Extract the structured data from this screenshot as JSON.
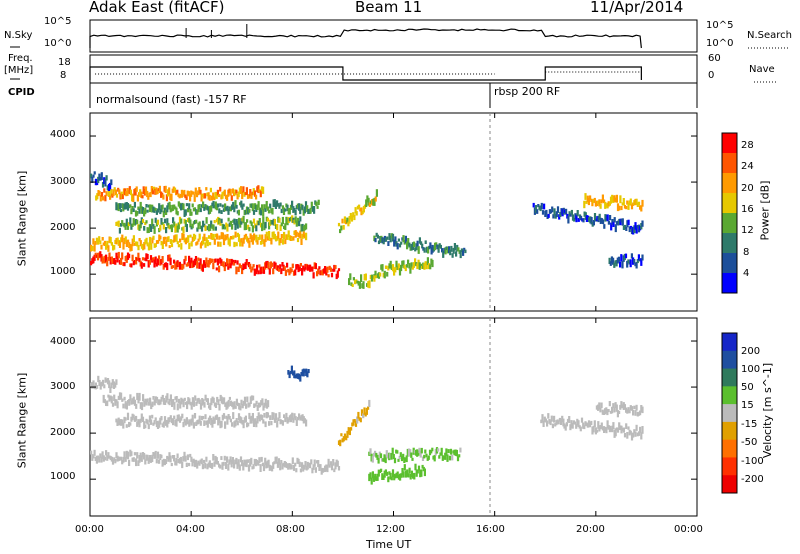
{
  "header": {
    "station": "Adak East (fitACF)",
    "beam": "Beam 11",
    "date": "11/Apr/2014"
  },
  "strip": {
    "nsky_label": "N.Sky",
    "nsky_ticks": [
      "10^5",
      "10^0"
    ],
    "nsearch_label": "N.Search",
    "freq_label_line1": "Freq.",
    "freq_label_line2": "[MHz]",
    "freq_ticks": [
      "18",
      "8"
    ],
    "nave_ticks": [
      "60",
      "0"
    ],
    "nave_label": "Nave",
    "cpid_label": "CPID",
    "cpid_segments": [
      {
        "name": "normalsound (fast) -157 RF",
        "start_hour": 0.0,
        "end_hour": 16.0
      },
      {
        "name": "rbsp 200 RF",
        "start_hour": 16.0,
        "end_hour": 21.8
      }
    ]
  },
  "axes": {
    "xlabel": "Time UT",
    "xticks": [
      "00:00",
      "04:00",
      "08:00",
      "12:00",
      "16:00",
      "20:00",
      "00:00"
    ],
    "ylabel": "Slant Range [km]",
    "yticks": [
      "4000",
      "3000",
      "2000",
      "1000"
    ]
  },
  "power_colorbar": {
    "label": "Power [dB]",
    "ticks": [
      "28",
      "24",
      "20",
      "16",
      "12",
      "8",
      "4"
    ],
    "colors": [
      "#ff0000",
      "#ff5500",
      "#ff9a00",
      "#e6c800",
      "#5aa832",
      "#2e7a6a",
      "#1c4f9a",
      "#0000ff"
    ]
  },
  "velocity_colorbar": {
    "label": "Velocity [m s^-1]",
    "ticks": [
      "200",
      "100",
      "50",
      "15",
      "-15",
      "-50",
      "-100",
      "-200"
    ],
    "colors": [
      "#1626c8",
      "#1f4fa0",
      "#2f7a5c",
      "#5bbf2e",
      "#bbbbbb",
      "#e0a000",
      "#ff7000",
      "#ff3000",
      "#ee0000"
    ]
  },
  "chart_data": [
    {
      "type": "heatmap",
      "title": "",
      "xlabel": "Time UT",
      "ylabel": "Slant Range [km]",
      "xlim": [
        0,
        24
      ],
      "ylim": [
        200,
        4500
      ],
      "colorbar_label": "Power [dB]",
      "colorbar_range": [
        0,
        32
      ],
      "bands": [
        {
          "t0": 0.0,
          "t1": 9.8,
          "r0": 1350,
          "r1": 1050,
          "v": 28
        },
        {
          "t0": 0.0,
          "t1": 8.5,
          "r0": 1650,
          "r1": 1800,
          "v": 20
        },
        {
          "t0": 1.0,
          "t1": 8.5,
          "r0": 2050,
          "r1": 2100,
          "v": 14
        },
        {
          "t0": 1.0,
          "t1": 9.0,
          "r0": 2400,
          "r1": 2450,
          "v": 12
        },
        {
          "t0": 0.2,
          "t1": 6.8,
          "r0": 2750,
          "r1": 2750,
          "v": 22
        },
        {
          "t0": 0.0,
          "t1": 0.8,
          "r0": 3150,
          "r1": 2950,
          "v": 6
        },
        {
          "t0": 9.8,
          "t1": 11.3,
          "r0": 2000,
          "r1": 2700,
          "v": 18
        },
        {
          "t0": 11.2,
          "t1": 14.8,
          "r0": 1800,
          "r1": 1450,
          "v": 10
        },
        {
          "t0": 11.2,
          "t1": 13.5,
          "r0": 1050,
          "r1": 1250,
          "v": 16
        },
        {
          "t0": 10.2,
          "t1": 11.2,
          "r0": 850,
          "r1": 850,
          "v": 16
        },
        {
          "t0": 17.5,
          "t1": 21.8,
          "r0": 2400,
          "r1": 2000,
          "v": 6
        },
        {
          "t0": 19.5,
          "t1": 21.8,
          "r0": 2600,
          "r1": 2500,
          "v": 20
        },
        {
          "t0": 20.5,
          "t1": 21.8,
          "r0": 1300,
          "r1": 1300,
          "v": 6
        }
      ]
    },
    {
      "type": "heatmap",
      "title": "",
      "xlabel": "Time UT",
      "ylabel": "Slant Range [km]",
      "xlim": [
        0,
        24
      ],
      "ylim": [
        200,
        4500
      ],
      "colorbar_label": "Velocity [m s^-1]",
      "colorbar_range": [
        -250,
        250
      ],
      "bands": [
        {
          "t0": 0.0,
          "t1": 9.8,
          "r0": 1500,
          "r1": 1250,
          "v": 0
        },
        {
          "t0": 0.5,
          "t1": 7.0,
          "r0": 2700,
          "r1": 2650,
          "v": 0
        },
        {
          "t0": 1.0,
          "t1": 8.5,
          "r0": 2250,
          "r1": 2300,
          "v": 0
        },
        {
          "t0": 0.0,
          "t1": 1.0,
          "r0": 3100,
          "r1": 3000,
          "v": 0
        },
        {
          "t0": 9.8,
          "t1": 11.0,
          "r0": 1800,
          "r1": 2600,
          "v": -40
        },
        {
          "t0": 11.0,
          "t1": 14.6,
          "r0": 1500,
          "r1": 1550,
          "v": 35
        },
        {
          "t0": 11.0,
          "t1": 13.2,
          "r0": 1050,
          "r1": 1200,
          "v": 60
        },
        {
          "t0": 7.8,
          "t1": 8.6,
          "r0": 3300,
          "r1": 3250,
          "v": 180
        },
        {
          "t0": 17.8,
          "t1": 21.8,
          "r0": 2300,
          "r1": 2000,
          "v": 0
        },
        {
          "t0": 20.0,
          "t1": 21.8,
          "r0": 2550,
          "r1": 2500,
          "v": 0
        }
      ]
    }
  ]
}
